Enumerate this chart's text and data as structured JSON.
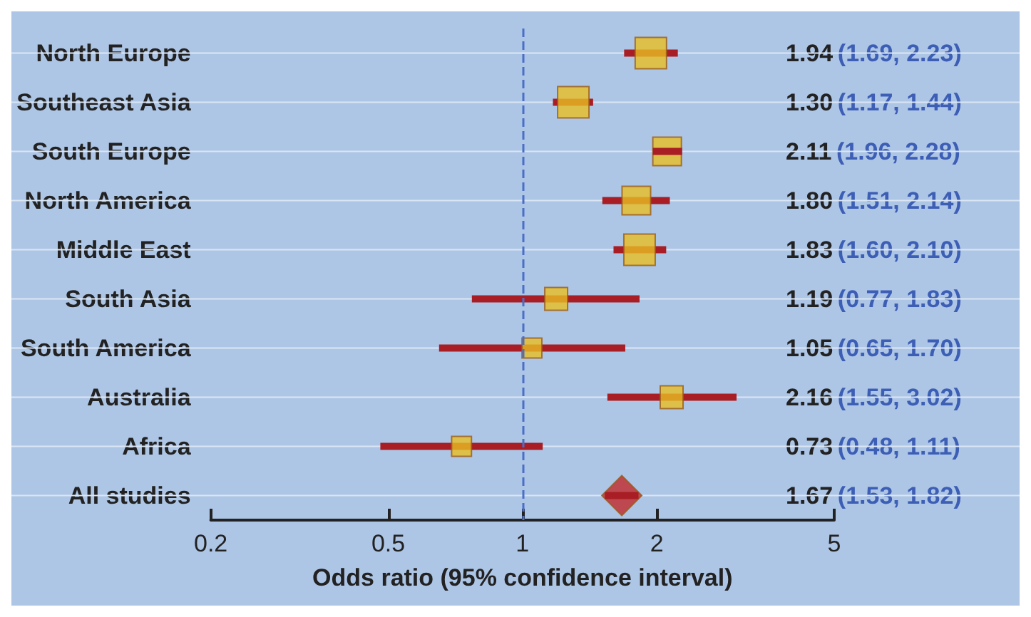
{
  "chart_data": {
    "type": "scatter",
    "orientation": "horizontal",
    "xlabel": "Odds ratio (95% confidence interval)",
    "categories": [
      "North Europe",
      "Southeast Asia",
      "South Europe",
      "North America",
      "Middle East",
      "South Asia",
      "South America",
      "Australia",
      "Africa",
      "All studies"
    ],
    "series": [
      {
        "type": "bubble",
        "color": "#e8be22",
        "marker": "square",
        "values": [
          1.94,
          1.3,
          2.11,
          1.8,
          1.83,
          1.19,
          1.05,
          2.16,
          0.73,
          null
        ],
        "sizes": [
          1,
          1,
          0.83,
          0.83,
          1,
          0.53,
          0.4,
          0.53,
          0.4,
          null
        ],
        "errors": [
          [
            1.69,
            2.23
          ],
          [
            1.17,
            1.44
          ],
          [
            1.96,
            2.28
          ],
          [
            1.51,
            2.14
          ],
          [
            1.6,
            2.1
          ],
          [
            0.77,
            1.83
          ],
          [
            0.65,
            1.7
          ],
          [
            1.55,
            3.02
          ],
          [
            0.48,
            1.11
          ],
          null
        ]
      },
      {
        "type": "scatter",
        "color": "#c0282a",
        "marker": "diamond",
        "values": [
          null,
          null,
          null,
          null,
          null,
          null,
          null,
          null,
          null,
          1.67
        ],
        "errors": [
          null,
          null,
          null,
          null,
          null,
          null,
          null,
          null,
          null,
          [
            1.53,
            1.82
          ]
        ]
      }
    ],
    "value_labels": [
      "1.94 (1.69, 2.23)",
      "1.30 (1.17, 1.44)",
      "2.11 (1.96, 2.28)",
      "1.80 (1.51, 2.14)",
      "1.83 (1.60, 2.10)",
      "1.19 (0.77, 1.83)",
      "1.05 (0.65, 1.70)",
      "2.16 (1.55, 3.02)",
      "0.73 (0.48, 1.11)",
      "1.67 (1.53, 1.82)"
    ],
    "log": "x",
    "xlim": [
      0.2,
      5
    ],
    "xticks": [
      0.2,
      0.5,
      1,
      2,
      5
    ],
    "grid": "y",
    "ref_lines": [
      {
        "axis": "x",
        "value": 1,
        "color": "#4a6fc8",
        "line_style": "dashed"
      }
    ]
  }
}
